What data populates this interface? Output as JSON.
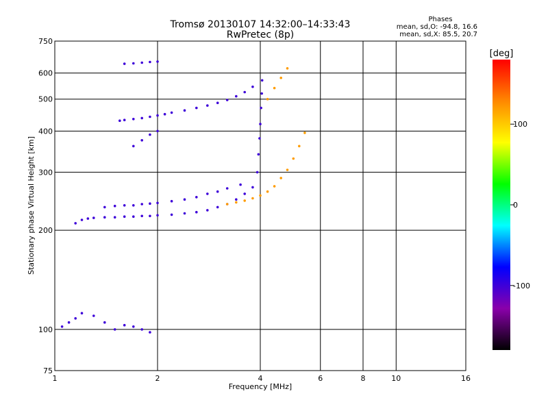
{
  "chart_data": {
    "type": "scatter",
    "title": "Tromsø 20130107 14:32:00–14:33:43",
    "subtitle": "RwPretec (8p)",
    "xlabel": "Frequency [MHz]",
    "ylabel": "Stationary phase Virtual Height [km]",
    "x_scale": "log",
    "y_scale": "log",
    "xlim": [
      1,
      16
    ],
    "ylim": [
      75,
      750
    ],
    "x_ticks": [
      1,
      2,
      4,
      6,
      8,
      10,
      16
    ],
    "y_ticks": [
      75,
      100,
      200,
      300,
      400,
      500,
      600,
      750
    ],
    "grid": true,
    "legend": {
      "title": "Phases",
      "lines": [
        "mean, sd,O: -94.8, 16.6",
        "mean, sd,X:  85.5, 20.7"
      ]
    },
    "colorbar": {
      "label": "[deg]",
      "ticks": [
        100,
        0,
        -100
      ],
      "range": [
        -180,
        180
      ],
      "colors": [
        "#000000",
        "#8a00aa",
        "#0000ff",
        "#00ffff",
        "#00ff00",
        "#ffff00",
        "#ff8800",
        "#ff0000"
      ]
    },
    "series": [
      {
        "color_phase": -100,
        "x": [
          1.15,
          1.2,
          1.25,
          1.3,
          1.4,
          1.5,
          1.6,
          1.7,
          1.8,
          1.9,
          2.0,
          2.2,
          2.4,
          2.6,
          2.8,
          3.0,
          3.2,
          3.4,
          3.6,
          3.8
        ],
        "y": [
          210,
          215,
          217,
          218,
          219,
          219,
          220,
          220,
          221,
          221,
          222,
          223,
          225,
          227,
          230,
          235,
          240,
          248,
          258,
          270
        ]
      },
      {
        "color_phase": -100,
        "x": [
          1.4,
          1.5,
          1.6,
          1.7,
          1.8,
          1.9,
          2.0,
          2.2,
          2.4,
          2.6,
          2.8,
          3.0,
          3.2,
          3.5
        ],
        "y": [
          235,
          237,
          238,
          238,
          240,
          241,
          242,
          245,
          248,
          252,
          258,
          262,
          268,
          275
        ]
      },
      {
        "color_phase": -100,
        "x": [
          1.55,
          1.6,
          1.7,
          1.8,
          1.9,
          2.0,
          2.1,
          2.2,
          2.4,
          2.6,
          2.8,
          3.0,
          3.2,
          3.4,
          3.6,
          3.8
        ],
        "y": [
          430,
          432,
          435,
          438,
          442,
          446,
          450,
          455,
          462,
          470,
          478,
          487,
          497,
          510,
          525,
          545
        ]
      },
      {
        "color_phase": -100,
        "x": [
          1.7,
          1.8,
          1.9,
          2.0
        ],
        "y": [
          360,
          375,
          390,
          400
        ]
      },
      {
        "color_phase": -100,
        "x": [
          3.92,
          3.95,
          3.98,
          4.0,
          4.02,
          4.04,
          4.05
        ],
        "y": [
          300,
          340,
          380,
          420,
          470,
          520,
          570
        ]
      },
      {
        "color_phase": 120,
        "x": [
          3.2,
          3.4,
          3.6,
          3.8,
          4.0,
          4.2,
          4.4,
          4.6,
          4.8,
          5.0,
          5.2,
          5.4
        ],
        "y": [
          240,
          243,
          246,
          250,
          255,
          262,
          272,
          288,
          305,
          330,
          360,
          395
        ]
      },
      {
        "color_phase": 120,
        "x": [
          4.2,
          4.4,
          4.6,
          4.8
        ],
        "y": [
          500,
          540,
          580,
          620
        ]
      },
      {
        "color_phase": -100,
        "x": [
          1.05,
          1.1,
          1.15,
          1.2,
          1.3,
          1.4,
          1.5,
          1.6,
          1.7,
          1.8,
          1.9
        ],
        "y": [
          102,
          105,
          108,
          112,
          110,
          105,
          100,
          103,
          102,
          100,
          98
        ]
      },
      {
        "color_phase": -100,
        "x": [
          1.6,
          1.7,
          1.8,
          1.9,
          2.0
        ],
        "y": [
          640,
          642,
          645,
          648,
          650
        ]
      }
    ]
  }
}
